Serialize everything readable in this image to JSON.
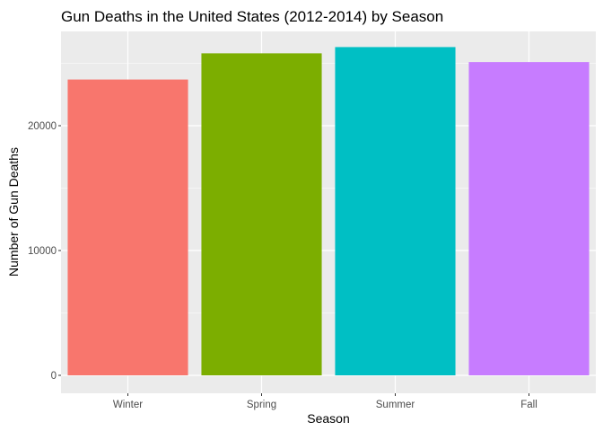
{
  "chart_data": {
    "type": "bar",
    "title": "Gun Deaths in the United States (2012-2014) by Season",
    "xlabel": "Season",
    "ylabel": "Number of Gun Deaths",
    "categories": [
      "Winter",
      "Spring",
      "Summer",
      "Fall"
    ],
    "values": [
      23700,
      25800,
      26300,
      25100
    ],
    "colors": [
      "#F8766D",
      "#7CAE00",
      "#00BFC4",
      "#C77CFF"
    ],
    "ylim": [
      0,
      27600
    ],
    "yticks": [
      0,
      10000,
      20000
    ],
    "ytick_labels": [
      "0",
      "10000",
      "20000"
    ],
    "grid": true,
    "panel_background": "#EBEBEB",
    "grid_color": "#FFFFFF"
  }
}
